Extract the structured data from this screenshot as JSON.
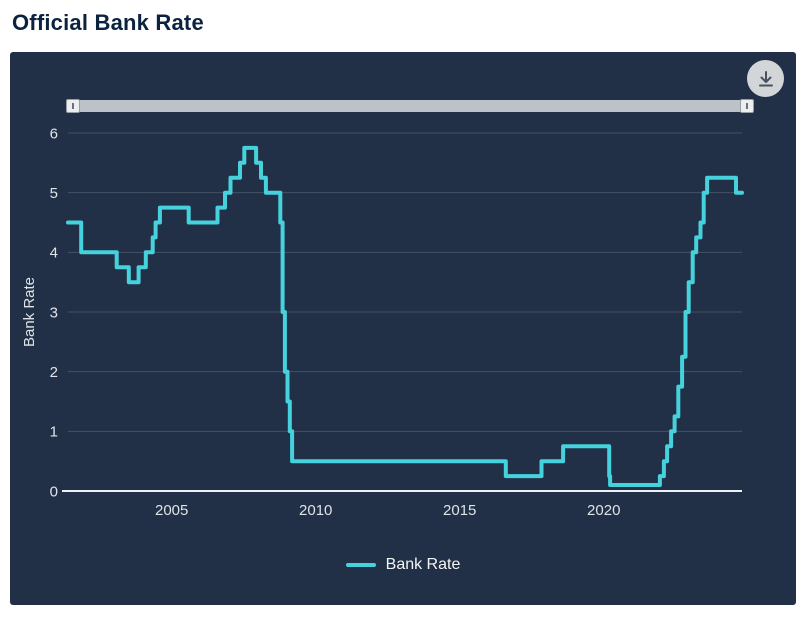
{
  "page": {
    "title": "Official Bank Rate"
  },
  "toolbar": {
    "download_icon": "download-icon"
  },
  "range_selector": {
    "left_handle_icon": "drag-grip-icon",
    "right_handle_icon": "drag-grip-icon"
  },
  "colors": {
    "accent": "#46d2dc",
    "panel_bg": "#213046",
    "title_text": "#0c2340",
    "axis_text": "#dfe4e8",
    "grid": "rgba(255,255,255,0.16)",
    "baseline": "#eef1f3",
    "slider_track": "#bcc2c7",
    "slider_handle": "#eceeef",
    "download_bg": "#d2d6d9",
    "download_icon": "#49525c",
    "legend_text": "#f2f5f7"
  },
  "chart_data": {
    "type": "line",
    "step": "after",
    "title": "Official Bank Rate",
    "xlabel": "",
    "ylabel": "Bank Rate",
    "xlim": [
      2001.4,
      2024.8
    ],
    "ylim": [
      0,
      6
    ],
    "xticks": [
      2005,
      2010,
      2015,
      2020
    ],
    "yticks": [
      0,
      1,
      2,
      3,
      4,
      5,
      6
    ],
    "grid": true,
    "legend_position": "bottom",
    "series": [
      {
        "name": "Bank Rate",
        "color": "#46d2dc",
        "points": [
          [
            2001.4,
            4.5
          ],
          [
            2001.86,
            4.0
          ],
          [
            2003.09,
            3.75
          ],
          [
            2003.51,
            3.5
          ],
          [
            2003.85,
            3.75
          ],
          [
            2004.1,
            4.0
          ],
          [
            2004.34,
            4.25
          ],
          [
            2004.44,
            4.5
          ],
          [
            2004.59,
            4.75
          ],
          [
            2005.59,
            4.5
          ],
          [
            2006.59,
            4.75
          ],
          [
            2006.85,
            5.0
          ],
          [
            2007.04,
            5.25
          ],
          [
            2007.37,
            5.5
          ],
          [
            2007.52,
            5.75
          ],
          [
            2007.93,
            5.5
          ],
          [
            2008.1,
            5.25
          ],
          [
            2008.27,
            5.0
          ],
          [
            2008.77,
            4.5
          ],
          [
            2008.85,
            3.0
          ],
          [
            2008.93,
            2.0
          ],
          [
            2009.02,
            1.5
          ],
          [
            2009.1,
            1.0
          ],
          [
            2009.18,
            0.5
          ],
          [
            2016.6,
            0.25
          ],
          [
            2017.84,
            0.5
          ],
          [
            2018.59,
            0.75
          ],
          [
            2020.19,
            0.25
          ],
          [
            2020.22,
            0.1
          ],
          [
            2021.95,
            0.25
          ],
          [
            2022.09,
            0.5
          ],
          [
            2022.2,
            0.75
          ],
          [
            2022.34,
            1.0
          ],
          [
            2022.46,
            1.25
          ],
          [
            2022.59,
            1.75
          ],
          [
            2022.72,
            2.25
          ],
          [
            2022.84,
            3.0
          ],
          [
            2022.95,
            3.5
          ],
          [
            2023.09,
            4.0
          ],
          [
            2023.21,
            4.25
          ],
          [
            2023.36,
            4.5
          ],
          [
            2023.47,
            5.0
          ],
          [
            2023.59,
            5.25
          ],
          [
            2024.59,
            5.0
          ]
        ]
      }
    ]
  }
}
